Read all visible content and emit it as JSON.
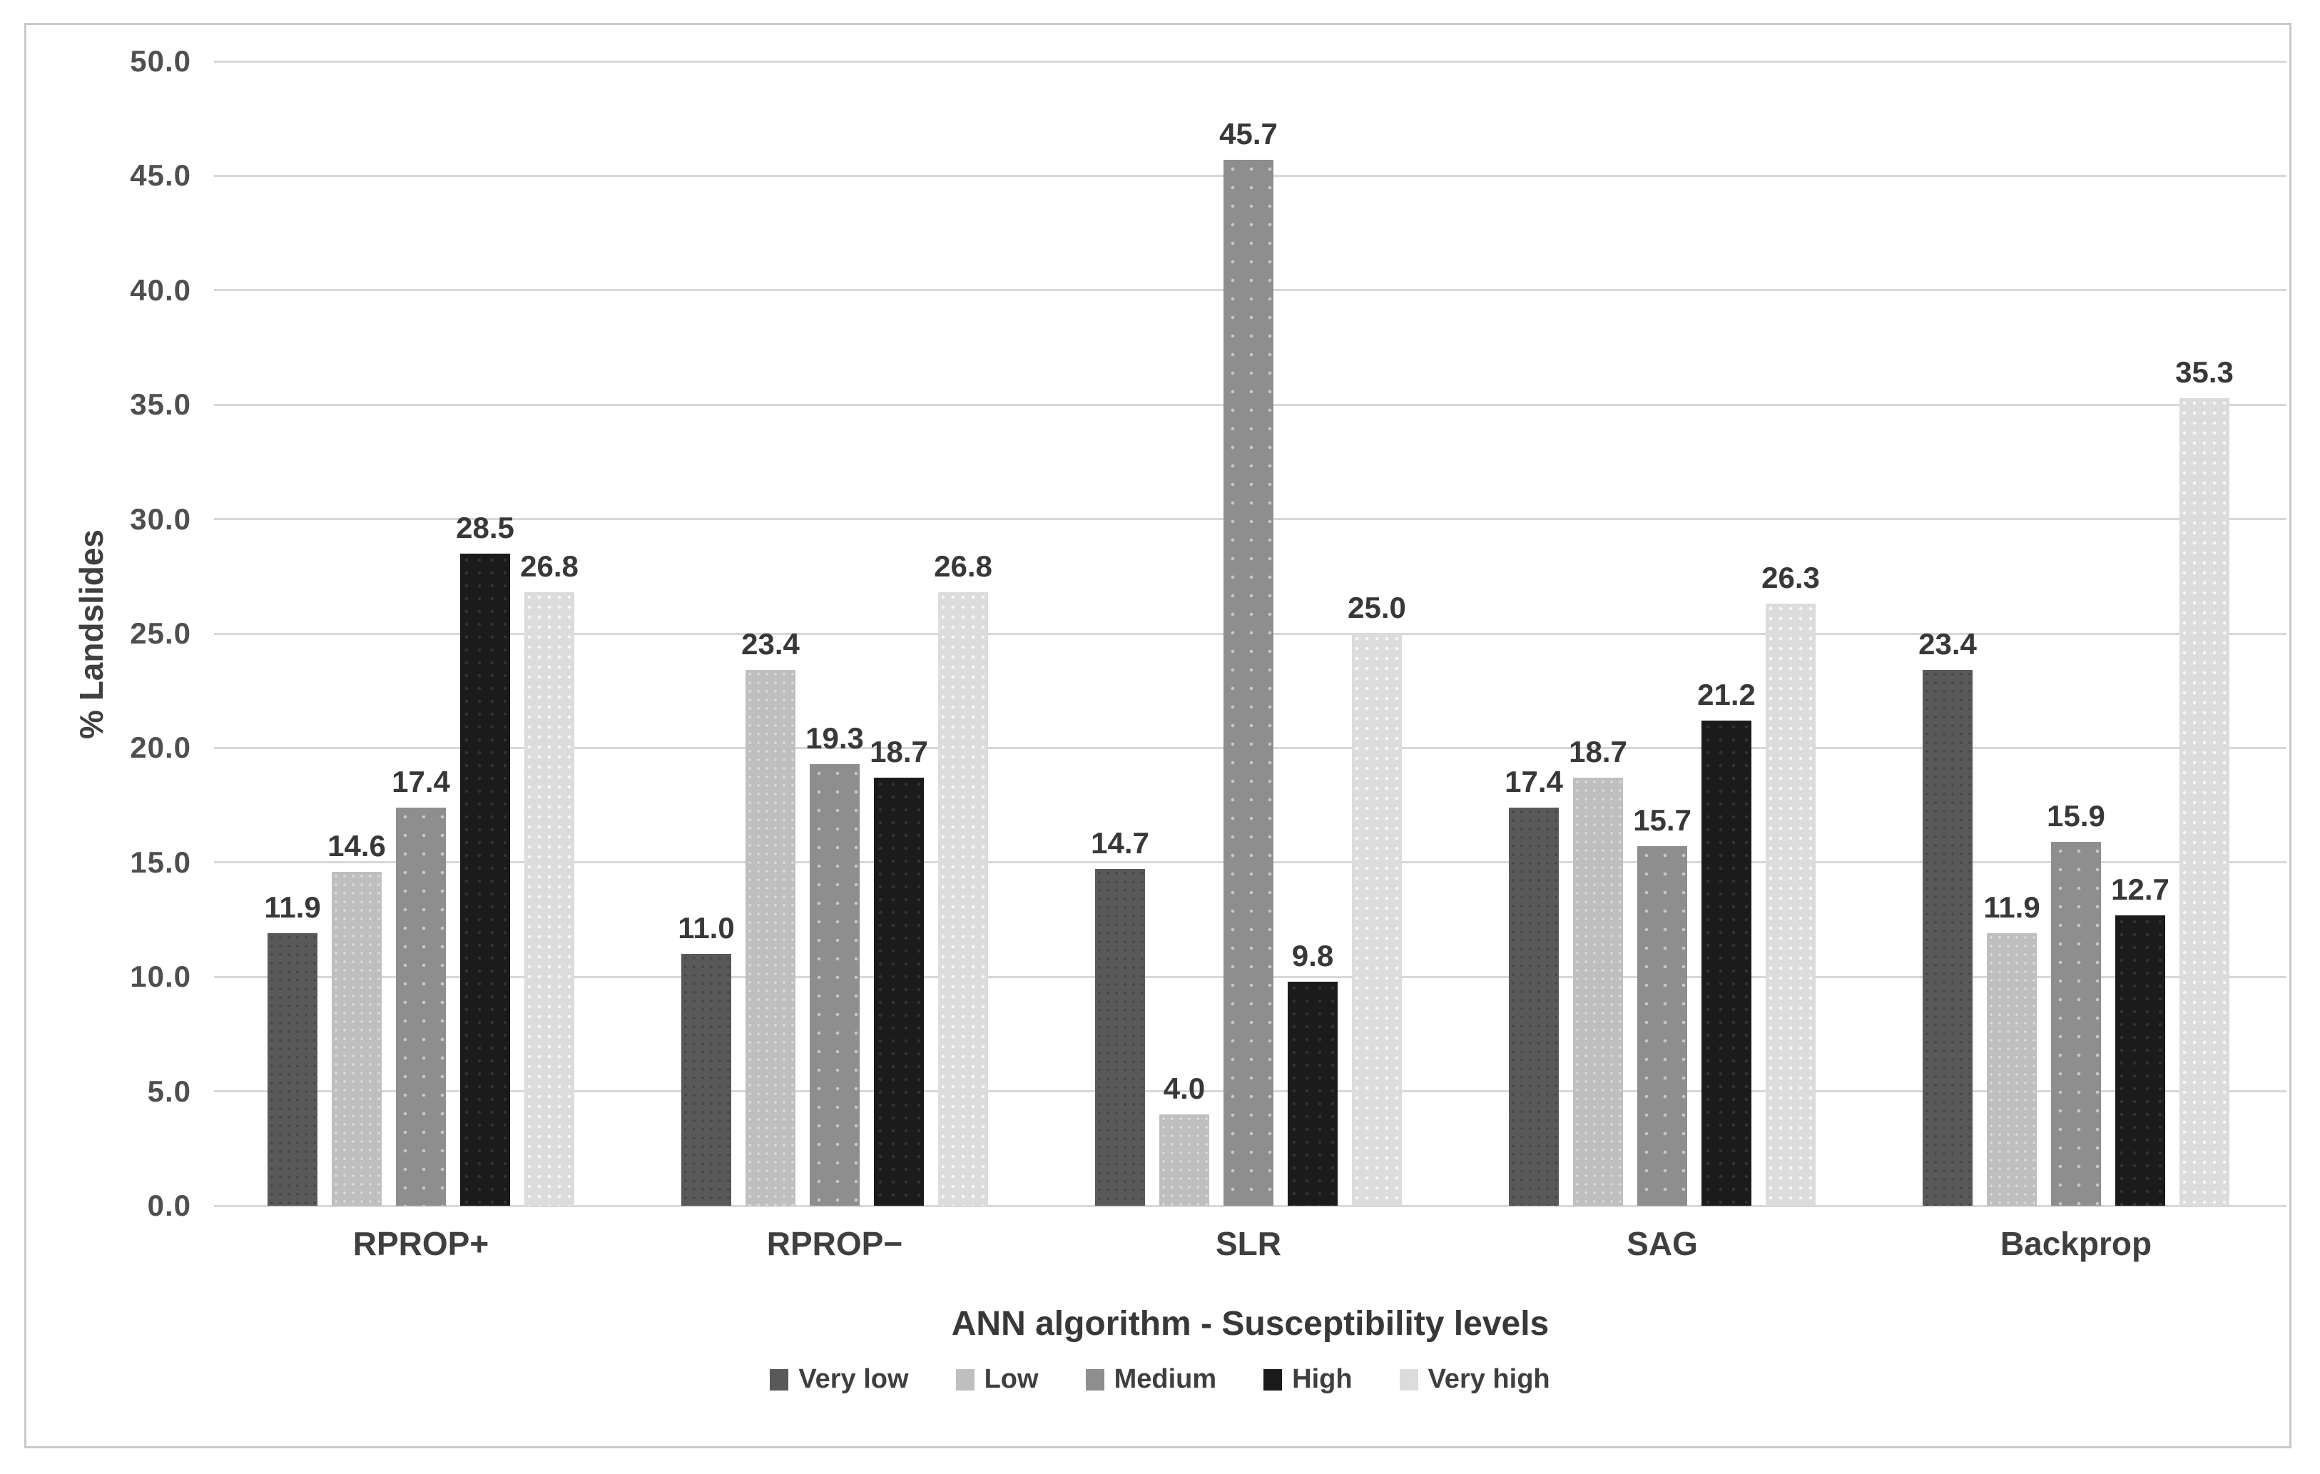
{
  "chart_data": {
    "type": "bar",
    "title": "",
    "categories": [
      "RPROP+",
      "RPROP−",
      "SLR",
      "SAG",
      "Backprop"
    ],
    "series": [
      {
        "name": "Very low",
        "color": "#595959",
        "values": [
          11.9,
          11.0,
          14.7,
          17.4,
          23.4
        ]
      },
      {
        "name": "Low",
        "color": "#bfbfbf",
        "values": [
          14.6,
          23.4,
          4.0,
          18.7,
          11.9
        ]
      },
      {
        "name": "Medium",
        "color": "#8e8e8e",
        "values": [
          17.4,
          19.3,
          45.7,
          15.7,
          15.9
        ]
      },
      {
        "name": "High",
        "color": "#1b1b1b",
        "values": [
          28.5,
          18.7,
          9.8,
          21.2,
          12.7
        ]
      },
      {
        "name": "Very high",
        "color": "#dcdcdc",
        "values": [
          26.8,
          26.8,
          25.0,
          26.3,
          35.3
        ]
      }
    ],
    "xlabel": "ANN algorithm - Susceptibility levels",
    "ylabel": "% Landslides",
    "ylim": [
      0,
      50
    ],
    "ytick_step": 5,
    "ytick_labels": [
      "0.0",
      "5.0",
      "10.0",
      "15.0",
      "20.0",
      "25.0",
      "30.0",
      "35.0",
      "40.0",
      "45.0",
      "50.0"
    ],
    "grid": true,
    "legend_position": "bottom",
    "value_labels": "one_decimal"
  },
  "style_colors": {
    "gridline": "#d8d8d8",
    "figure_border": "#c9c9c9",
    "tick_text": "#4f4f4f",
    "label_text": "#383838"
  }
}
